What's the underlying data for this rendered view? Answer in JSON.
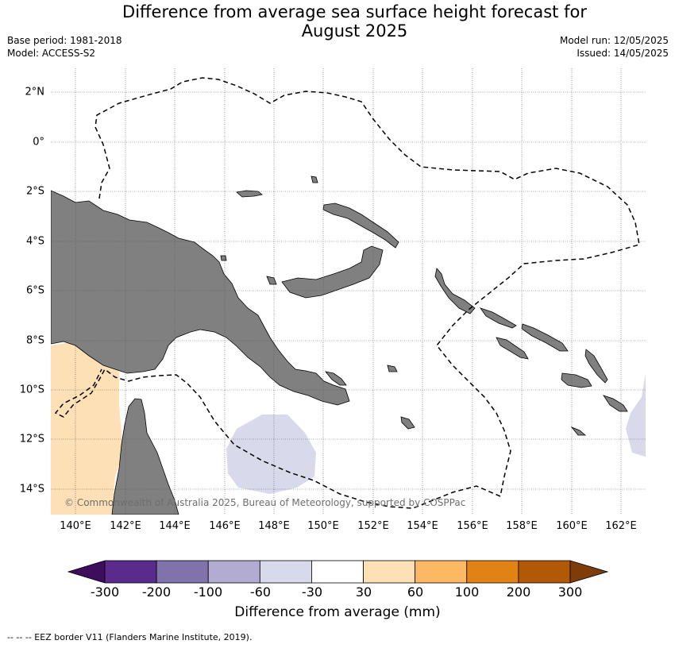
{
  "title_line1": "Difference from average sea surface height forecast for",
  "title_line2": "August 2025",
  "meta": {
    "base_period": "Base period: 1981-2018",
    "model": "Model: ACCESS-S2",
    "model_run": "Model run: 12/05/2025",
    "issued": "Issued: 14/05/2025"
  },
  "map": {
    "latitude_labels": [
      "2°N",
      "0°",
      "2°S",
      "4°S",
      "6°S",
      "8°S",
      "10°S",
      "12°S",
      "14°S"
    ],
    "longitude_labels": [
      "140°E",
      "142°E",
      "144°E",
      "146°E",
      "148°E",
      "150°E",
      "152°E",
      "154°E",
      "156°E",
      "158°E",
      "160°E",
      "162°E"
    ],
    "copyright": "© Commonwealth of Australia 2025, Bureau of Meteorology, supported by COSPPac",
    "land_color": "#808080",
    "ocean_color": "#ffffff"
  },
  "legend": {
    "label": "Difference from average (mm)",
    "ticks": [
      "-300",
      "-200",
      "-100",
      "-60",
      "-30",
      "30",
      "60",
      "100",
      "200",
      "300"
    ],
    "colors": [
      "#3f0d5e",
      "#5b2a8d",
      "#8073ac",
      "#b2abd2",
      "#d8daeb",
      "#ffffff",
      "#fee0b6",
      "#fdb863",
      "#e08214",
      "#b35806",
      "#7f3b08"
    ]
  },
  "footnote": "--  --  -- EEZ border V11 (Flanders Marine Institute, 2019)."
}
